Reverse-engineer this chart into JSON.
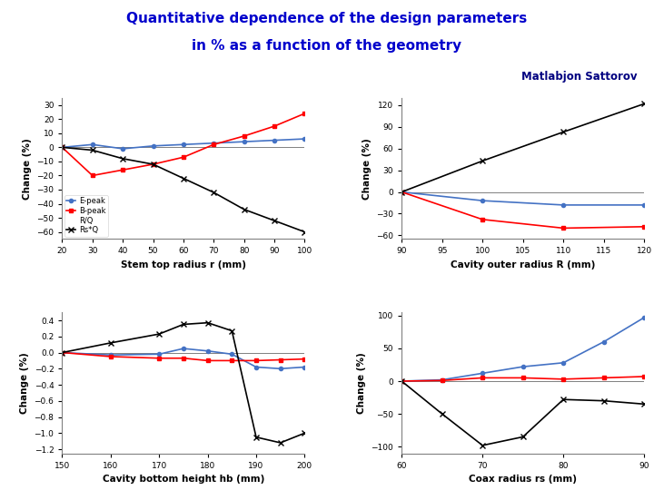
{
  "title_line1": "Quantitative dependence of the design parameters",
  "title_line2": "in % as a function of the geometry",
  "subtitle": "Matlabjon Sattorov",
  "title_color": "#0000CC",
  "subtitle_color": "#000080",
  "plot1": {
    "xlabel": "Stem top radius r (mm)",
    "ylabel": "Change (%)",
    "xlim": [
      20,
      100
    ],
    "ylim": [
      -65,
      35
    ],
    "xticks": [
      20,
      30,
      40,
      50,
      60,
      70,
      80,
      90,
      100
    ],
    "yticks": [
      -60,
      -50,
      -40,
      -30,
      -20,
      -10,
      0,
      10,
      20,
      30
    ],
    "x": [
      20,
      30,
      40,
      50,
      60,
      70,
      80,
      90,
      100
    ],
    "E_peak": [
      0,
      2,
      -1,
      1,
      2,
      3,
      4,
      5,
      6
    ],
    "B_peak": [
      0,
      -20,
      -16,
      -12,
      -7,
      2,
      8,
      15,
      24
    ],
    "RQ": [
      0,
      0,
      0,
      0,
      0,
      0,
      0,
      0,
      0
    ],
    "RsQ": [
      0,
      -2,
      -8,
      -12,
      -22,
      -32,
      -44,
      -52,
      -60
    ],
    "legend_E": "E-peak",
    "legend_B": "B-peak",
    "legend_RQ": "R/Q",
    "legend_RsQ": "Rs*Q",
    "color_E": "#4472C4",
    "color_B": "#FF0000",
    "color_RQ": "#000000",
    "color_RsQ": "#000000"
  },
  "plot2": {
    "xlabel": "Cavity outer radius R (mm)",
    "ylabel": "Change (%)",
    "xlim": [
      90,
      120
    ],
    "ylim": [
      -65,
      130
    ],
    "xticks": [
      90,
      95,
      100,
      105,
      110,
      115,
      120
    ],
    "yticks": [
      -60,
      -30,
      0,
      30,
      60,
      90,
      120
    ],
    "x": [
      90,
      100,
      110,
      120
    ],
    "E_peak": [
      0,
      -12,
      -18,
      -18
    ],
    "B_peak": [
      0,
      -38,
      -50,
      -48
    ],
    "RsQ": [
      0,
      43,
      83,
      122
    ],
    "color_E": "#4472C4",
    "color_B": "#FF0000",
    "color_RsQ": "#000000"
  },
  "plot3": {
    "xlabel": "Cavity bottom height hb (mm)",
    "ylabel": "Change (%)",
    "xlim": [
      150,
      200
    ],
    "ylim": [
      -1.25,
      0.5
    ],
    "xticks": [
      150,
      160,
      170,
      180,
      190,
      200
    ],
    "yticks": [
      -1.2,
      -1.0,
      -0.8,
      -0.6,
      -0.4,
      -0.2,
      0.0,
      0.2,
      0.4
    ],
    "x": [
      150,
      160,
      170,
      175,
      180,
      185,
      190,
      195,
      200
    ],
    "E_peak": [
      0.0,
      -0.03,
      -0.02,
      0.05,
      0.02,
      -0.02,
      -0.18,
      -0.2,
      -0.18
    ],
    "B_peak": [
      0.0,
      -0.05,
      -0.07,
      -0.07,
      -0.1,
      -0.1,
      -0.1,
      -0.09,
      -0.08
    ],
    "RsQ": [
      0.0,
      0.12,
      0.23,
      0.35,
      0.37,
      0.27,
      -1.05,
      -1.12,
      -1.0
    ],
    "color_E": "#4472C4",
    "color_B": "#FF0000",
    "color_RsQ": "#000000"
  },
  "plot4": {
    "xlabel": "Coax radius rs (mm)",
    "ylabel": "Change (%)",
    "xlim": [
      60,
      90
    ],
    "ylim": [
      -110,
      105
    ],
    "xticks": [
      60,
      70,
      80,
      90
    ],
    "yticks": [
      -100,
      -50,
      0,
      50,
      100
    ],
    "x": [
      60,
      65,
      70,
      75,
      80,
      85,
      90
    ],
    "E_peak": [
      0,
      2,
      12,
      22,
      28,
      60,
      97
    ],
    "B_peak": [
      0,
      1,
      5,
      5,
      3,
      5,
      7
    ],
    "RsQ": [
      0,
      -50,
      -98,
      -85,
      -28,
      -30,
      -35
    ],
    "color_E": "#4472C4",
    "color_B": "#FF0000",
    "color_RsQ": "#000000"
  }
}
